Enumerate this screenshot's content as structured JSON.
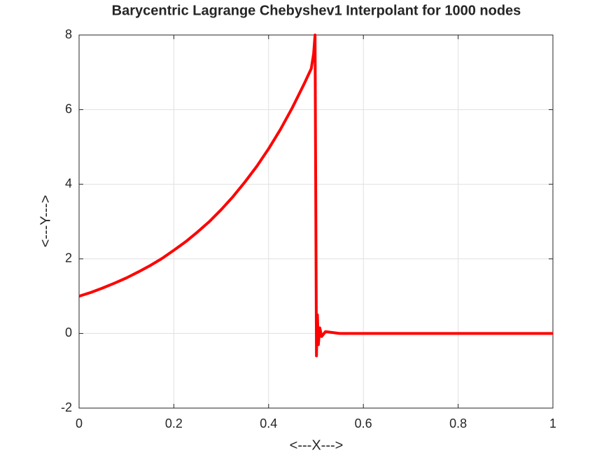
{
  "chart_data": {
    "type": "line",
    "title": "Barycentric Lagrange Chebyshev1 Interpolant for 1000 nodes",
    "x_label": "<---X--->",
    "y_label": "<---Y--->",
    "x": [
      0,
      0.025,
      0.05,
      0.075,
      0.1,
      0.125,
      0.15,
      0.175,
      0.2,
      0.225,
      0.25,
      0.275,
      0.3,
      0.325,
      0.35,
      0.375,
      0.4,
      0.425,
      0.45,
      0.475,
      0.49,
      0.495,
      0.498,
      0.501,
      0.503,
      0.505,
      0.508,
      0.512,
      0.52,
      0.55,
      0.6,
      0.7,
      0.8,
      0.9,
      1
    ],
    "series": [
      {
        "color": "#ff0000",
        "values": [
          1,
          1.1,
          1.22,
          1.35,
          1.49,
          1.65,
          1.82,
          2.01,
          2.23,
          2.46,
          2.72,
          3.0,
          3.32,
          3.67,
          4.06,
          4.48,
          4.95,
          5.47,
          6.05,
          6.69,
          7.1,
          7.5,
          8.0,
          -0.6,
          0.5,
          -0.3,
          0.15,
          -0.08,
          0.05,
          0,
          0,
          0,
          0,
          0,
          0
        ]
      }
    ],
    "xlim": [
      0,
      1
    ],
    "ylim": [
      -2,
      8
    ],
    "xticks": [
      0,
      0.2,
      0.4,
      0.6,
      0.8,
      1
    ],
    "yticks": [
      -2,
      0,
      2,
      4,
      6,
      8
    ],
    "grid": true
  }
}
